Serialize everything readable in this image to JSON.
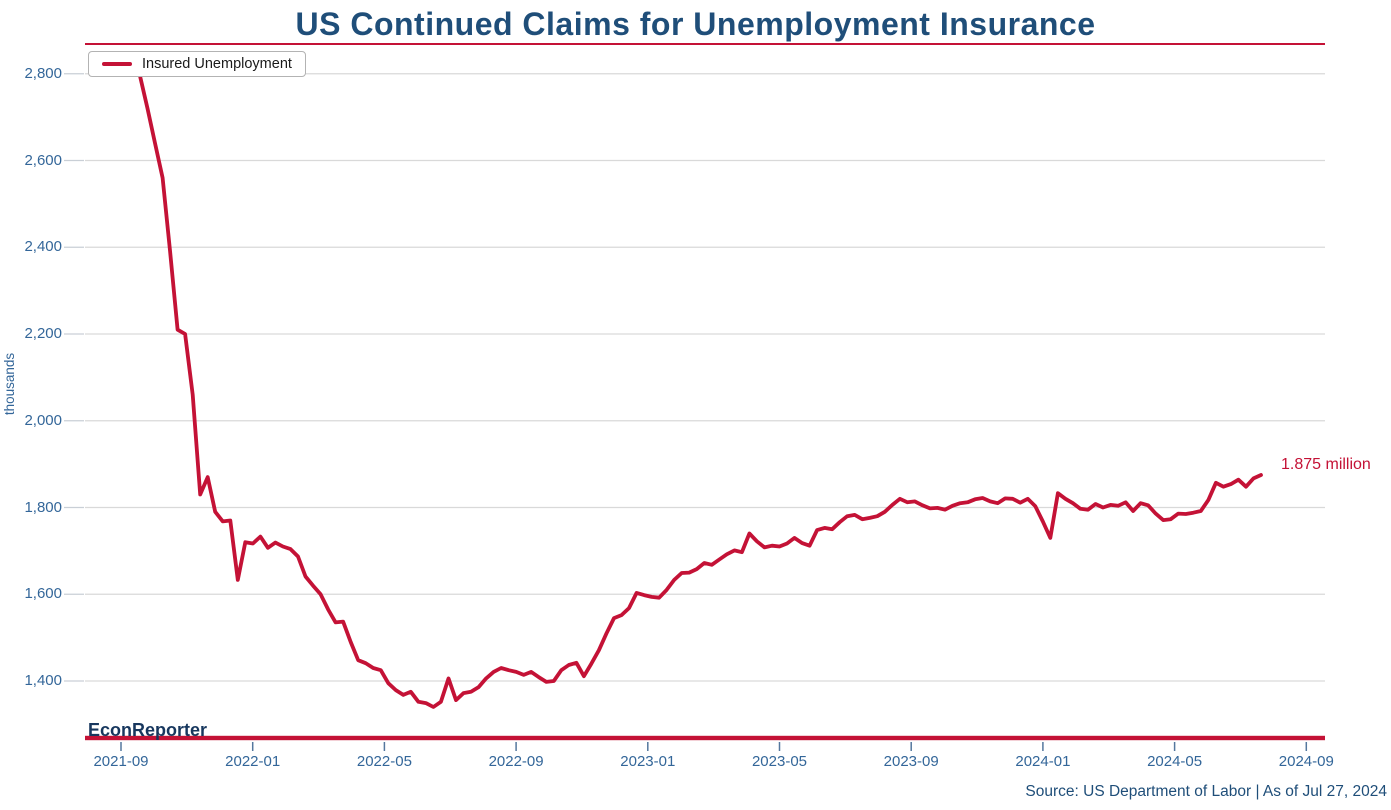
{
  "title": "US Continued Claims for Unemployment Insurance",
  "legend": {
    "label": "Insured Unemployment"
  },
  "annotation": {
    "text": "1.875 million"
  },
  "watermark": "EconReporter",
  "source_note": "Source: US Department of Labor | As of Jul 27, 2024",
  "colors": {
    "line": "#C41236",
    "axis_line": "#C41236",
    "title": "#1F4E79",
    "tick_label": "#336699",
    "grid": "#D9D9D9",
    "x_tick_mark": "#54779E",
    "annotation": "#C41236",
    "watermark": "#17375E"
  },
  "chart_data": {
    "type": "line",
    "title": "US Continued Claims for Unemployment Insurance",
    "xlabel": "",
    "ylabel": "thousands",
    "ylim": [
      1270,
      2860
    ],
    "grid": "horizontal",
    "legend_position": "top-left",
    "yticks": [
      {
        "value": 1400,
        "label": "1,400"
      },
      {
        "value": 1600,
        "label": "1,600"
      },
      {
        "value": 1800,
        "label": "1,800"
      },
      {
        "value": 2000,
        "label": "2,000"
      },
      {
        "value": 2200,
        "label": "2,200"
      },
      {
        "value": 2400,
        "label": "2,400"
      },
      {
        "value": 2600,
        "label": "2,600"
      },
      {
        "value": 2800,
        "label": "2,800"
      }
    ],
    "xticks": [
      "2021-09",
      "2022-01",
      "2022-05",
      "2022-09",
      "2023-01",
      "2023-05",
      "2023-09",
      "2024-01",
      "2024-05",
      "2024-09"
    ],
    "series": [
      {
        "name": "Insured Unemployment",
        "unit": "thousands",
        "frequency": "weekly",
        "start_week_ending": "2021-09-18",
        "end_week_ending": "2024-07-27",
        "values": [
          2795,
          2720,
          2640,
          2560,
          2390,
          2210,
          2200,
          2060,
          1830,
          1870,
          1790,
          1768,
          1770,
          1633,
          1720,
          1717,
          1733,
          1707,
          1719,
          1710,
          1704,
          1687,
          1641,
          1620,
          1600,
          1565,
          1535,
          1537,
          1490,
          1448,
          1441,
          1430,
          1425,
          1395,
          1379,
          1368,
          1375,
          1352,
          1349,
          1340,
          1352,
          1406,
          1356,
          1372,
          1375,
          1386,
          1406,
          1421,
          1430,
          1425,
          1421,
          1414,
          1421,
          1409,
          1398,
          1400,
          1425,
          1437,
          1442,
          1411,
          1440,
          1471,
          1510,
          1545,
          1552,
          1568,
          1603,
          1598,
          1594,
          1592,
          1610,
          1633,
          1649,
          1650,
          1658,
          1672,
          1668,
          1680,
          1692,
          1701,
          1697,
          1740,
          1722,
          1708,
          1712,
          1710,
          1717,
          1730,
          1718,
          1712,
          1748,
          1753,
          1750,
          1766,
          1780,
          1783,
          1773,
          1776,
          1780,
          1790,
          1806,
          1820,
          1812,
          1814,
          1805,
          1798,
          1799,
          1795,
          1804,
          1810,
          1812,
          1819,
          1822,
          1814,
          1810,
          1821,
          1820,
          1811,
          1820,
          1803,
          1768,
          1730,
          1833,
          1820,
          1810,
          1797,
          1795,
          1808,
          1800,
          1806,
          1804,
          1812,
          1792,
          1810,
          1805,
          1786,
          1771,
          1773,
          1786,
          1785,
          1788,
          1792,
          1817,
          1857,
          1848,
          1854,
          1864,
          1848,
          1867,
          1875
        ]
      }
    ],
    "last_point": {
      "date": "2024-07-27",
      "value_thousands": 1875,
      "label": "1.875 million"
    }
  }
}
